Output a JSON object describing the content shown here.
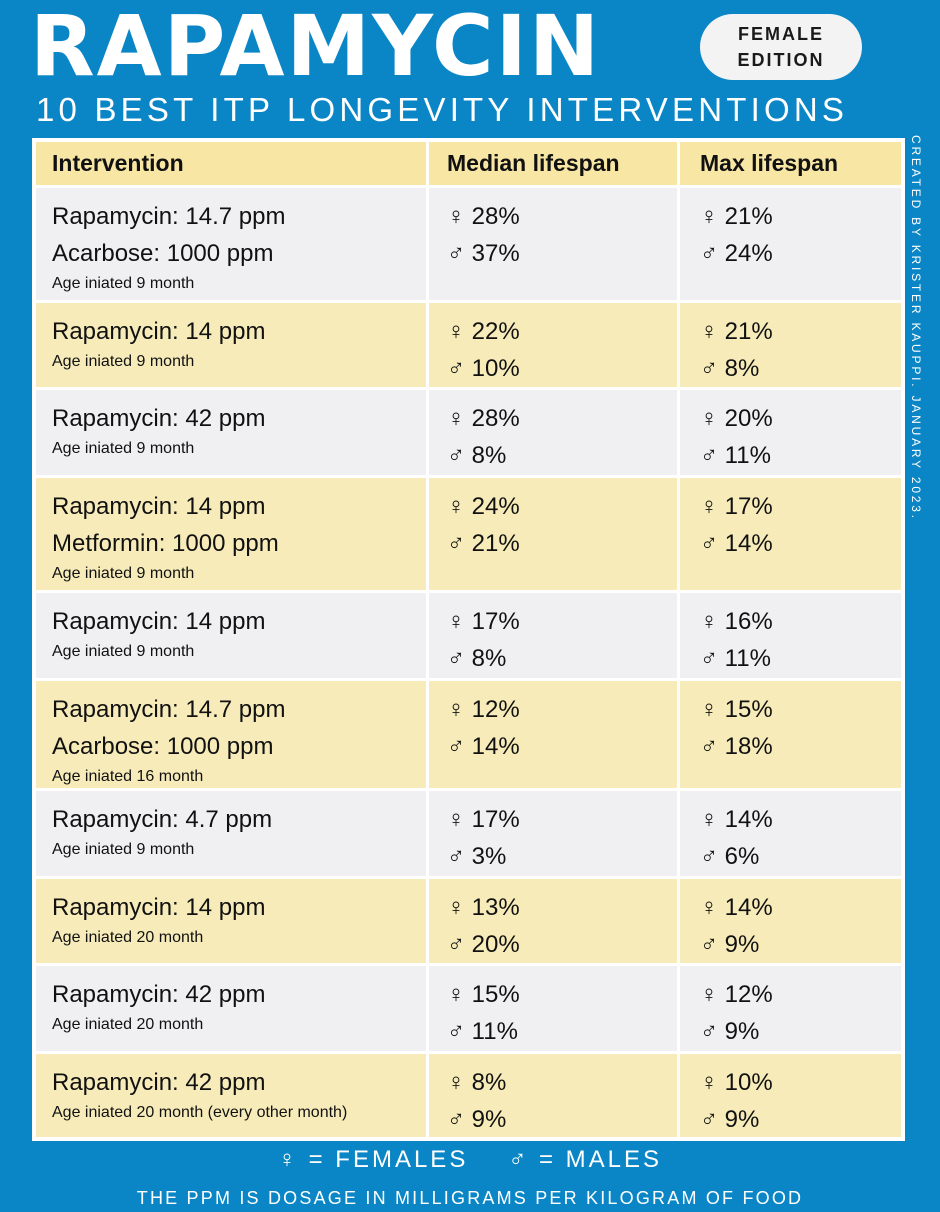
{
  "header": {
    "title": "RAPAMYCIN",
    "badge_line1": "FEMALE",
    "badge_line2": "EDITION",
    "subtitle": "10 BEST ITP LONGEVITY INTERVENTIONS",
    "credit": "CREATED BY KRISTER KAUPPI. JANUARY 2023."
  },
  "table": {
    "columns": [
      "Intervention",
      "Median lifespan",
      "Max lifespan"
    ],
    "rows": [
      {
        "lines": [
          "Rapamycin: 14.7 ppm",
          "Acarbose: 1000 ppm"
        ],
        "age": "Age iniated 9 month",
        "median": [
          "♀ 28%",
          "♂ 37%"
        ],
        "max": [
          "♀ 21%",
          "♂ 24%"
        ]
      },
      {
        "lines": [
          "Rapamycin: 14 ppm"
        ],
        "age": "Age iniated 9 month",
        "median": [
          "♀ 22%",
          "♂ 10%"
        ],
        "max": [
          "♀ 21%",
          "♂ 8%"
        ]
      },
      {
        "lines": [
          "Rapamycin: 42 ppm"
        ],
        "age": "Age iniated 9 month",
        "median": [
          "♀ 28%",
          "♂ 8%"
        ],
        "max": [
          "♀ 20%",
          "♂ 11%"
        ]
      },
      {
        "lines": [
          "Rapamycin: 14 ppm",
          "Metformin: 1000 ppm"
        ],
        "age": "Age iniated 9 month",
        "median": [
          "♀ 24%",
          "♂ 21%"
        ],
        "max": [
          "♀ 17%",
          "♂ 14%"
        ]
      },
      {
        "lines": [
          "Rapamycin: 14 ppm"
        ],
        "age": "Age iniated 9 month",
        "median": [
          "♀ 17%",
          "♂ 8%"
        ],
        "max": [
          "♀ 16%",
          "♂ 11%"
        ]
      },
      {
        "lines": [
          "Rapamycin: 14.7 ppm",
          "Acarbose: 1000 ppm"
        ],
        "age": "Age iniated 16 month",
        "median": [
          "♀ 12%",
          "♂ 14%"
        ],
        "max": [
          "♀ 15%",
          "♂ 18%"
        ]
      },
      {
        "lines": [
          "Rapamycin: 4.7 ppm"
        ],
        "age": "Age iniated 9 month",
        "median": [
          "♀ 17%",
          "♂ 3%"
        ],
        "max": [
          "♀ 14%",
          "♂ 6%"
        ]
      },
      {
        "lines": [
          "Rapamycin: 14 ppm"
        ],
        "age": "Age iniated 20 month",
        "median": [
          "♀ 13%",
          "♂ 20%"
        ],
        "max": [
          "♀ 14%",
          "♂ 9%"
        ]
      },
      {
        "lines": [
          "Rapamycin: 42 ppm"
        ],
        "age": "Age iniated 20 month",
        "median": [
          "♀ 15%",
          "♂ 11%"
        ],
        "max": [
          "♀ 12%",
          "♂ 9%"
        ]
      },
      {
        "lines": [
          "Rapamycin: 42 ppm"
        ],
        "age": "Age iniated 20 month (every other month)",
        "median": [
          "♀ 8%",
          "♂ 9%"
        ],
        "max": [
          "♀ 10%",
          "♂ 9%"
        ]
      }
    ]
  },
  "legend": {
    "females": "♀ = FEMALES",
    "males": "♂ = MALES"
  },
  "footnote": "THE PPM IS DOSAGE IN MILLIGRAMS PER KILOGRAM OF FOOD",
  "colors": {
    "background": "#0a86c6",
    "header_row": "#f7e6a4",
    "row_grey": "#f0f0f2",
    "row_yellow": "#f7ecb9"
  }
}
